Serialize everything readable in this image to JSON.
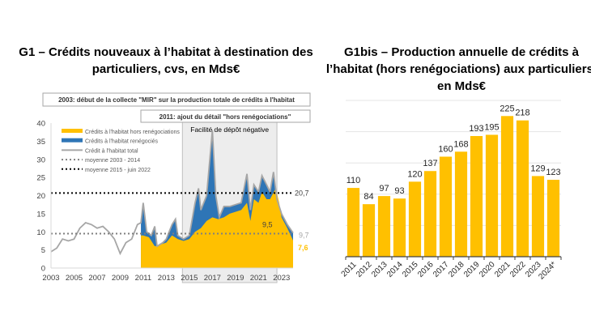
{
  "chart_data": [
    {
      "type": "area",
      "title_lines": [
        "G1 – Crédits nouveaux à l’habitat à destination des",
        "particuliers, cvs, en Mds€"
      ],
      "ylim": [
        0,
        40
      ],
      "yticks": [
        0,
        5,
        10,
        15,
        20,
        25,
        30,
        35,
        40
      ],
      "xlim": [
        2003,
        2024
      ],
      "xticks": [
        "2003",
        "2005",
        "2007",
        "2009",
        "2011",
        "2013",
        "2015",
        "2017",
        "2019",
        "2021",
        "2023"
      ],
      "grid": false,
      "legend_placement": "top-left",
      "annotation_boxes": [
        "2003: début de la collecte \"MIR\" sur la production totale de crédits à l'habitat",
        "2011: ajout du détail \"hors renégociations\""
      ],
      "shaded_region": {
        "label": "Facilité de dépôt négative",
        "x": [
          2014.4,
          2022.6
        ]
      },
      "series": [
        {
          "name": "Crédits à l'habitat hors renégociations",
          "color": "#FFC000",
          "type": "area",
          "x": [
            2010.8,
            2011,
            2011.5,
            2012,
            2012.5,
            2013,
            2013.5,
            2014,
            2014.5,
            2015,
            2015.5,
            2016,
            2016.5,
            2017,
            2017.5,
            2018,
            2018.5,
            2019,
            2019.5,
            2020,
            2020.3,
            2020.6,
            2021,
            2021.3,
            2021.7,
            2022,
            2022.5,
            2022.8,
            2023,
            2023.5,
            2024
          ],
          "y": [
            9,
            9,
            8.5,
            6,
            6.5,
            7,
            9,
            8,
            7.5,
            8,
            10,
            11,
            13,
            14,
            13.5,
            14,
            15,
            15.5,
            16,
            18,
            13,
            19,
            18,
            21,
            19,
            19,
            22,
            18,
            14,
            11,
            7.6
          ]
        },
        {
          "name": "Crédits à l'habitat renégociés",
          "color": "#2E75B6",
          "type": "stacked-area"
        },
        {
          "name": "Crédit à l'habitat total",
          "color": "#A6A6A6",
          "type": "line",
          "x": [
            2003,
            2003.5,
            2004,
            2004.5,
            2005,
            2005.5,
            2006,
            2006.5,
            2007,
            2007.5,
            2008,
            2008.5,
            2009,
            2009.5,
            2010,
            2010.5,
            2010.8,
            2011,
            2011.3,
            2011.7,
            2012,
            2012.2,
            2012.7,
            2013,
            2013.5,
            2013.8,
            2014,
            2014.5,
            2015,
            2015.5,
            2015.8,
            2016,
            2016.5,
            2017,
            2017.3,
            2017.6,
            2018,
            2018.5,
            2019,
            2019.5,
            2020,
            2020.3,
            2020.6,
            2021,
            2021.3,
            2021.7,
            2022,
            2022.3,
            2022.6,
            2023,
            2023.5,
            2024
          ],
          "y": [
            4.5,
            5.5,
            8,
            7.5,
            8,
            11,
            12.5,
            12,
            11,
            11.5,
            10,
            8,
            4,
            7,
            8,
            12,
            12.5,
            18,
            10,
            9,
            11.5,
            6,
            7,
            8,
            12,
            13.5,
            9,
            8,
            9,
            18,
            22,
            16,
            20,
            38,
            20,
            14,
            17,
            17,
            17.5,
            18,
            26,
            16,
            23,
            21,
            25.5,
            23,
            21,
            26.5,
            19,
            15,
            12,
            9.7
          ]
        },
        {
          "name": "moyenne 2003 - 2014",
          "color": "#7F7F7F",
          "type": "dotted",
          "value": 9.5
        },
        {
          "name": "moyenne 2015 - juin 2022",
          "color": "#000000",
          "type": "dotted",
          "value": 20.7
        }
      ],
      "labels": {
        "avg2": "20,7",
        "total_last": "9,7",
        "avg1": "9,5",
        "hors_last": "7,6"
      }
    },
    {
      "type": "bar",
      "title_lines": [
        "G1bis – Production annuelle de crédits à",
        "l’habitat (hors renégociations) aux particuliers,",
        "en Mds€"
      ],
      "categories": [
        "2011",
        "2012",
        "2013",
        "2014",
        "2015",
        "2016",
        "2017",
        "2018",
        "2019",
        "2020",
        "2021",
        "2022",
        "2023",
        "2024*"
      ],
      "values": [
        110,
        84,
        97,
        93,
        120,
        137,
        160,
        168,
        193,
        195,
        225,
        218,
        129,
        123
      ],
      "ylim": [
        0,
        250
      ],
      "grid": true,
      "color": "#FFC000"
    }
  ]
}
